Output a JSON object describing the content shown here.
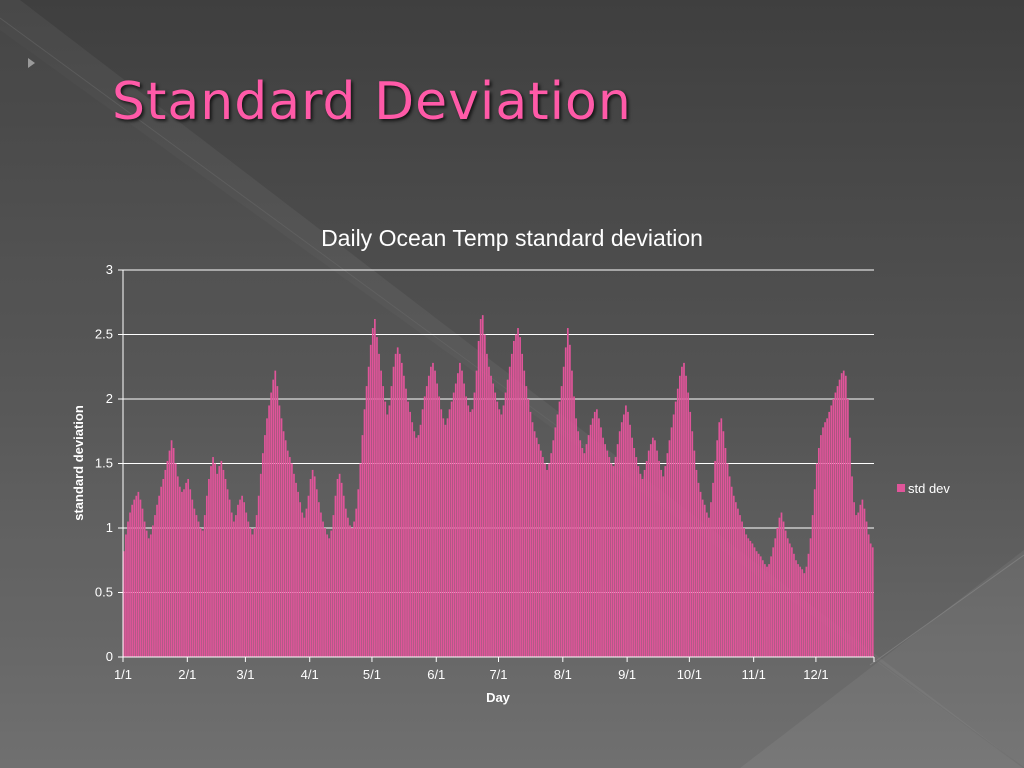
{
  "slide": {
    "title": "Standard Deviation",
    "title_color": "#ff5aa8",
    "marker_icon": "triangle-right-icon"
  },
  "chart_data": {
    "type": "bar",
    "title": "Daily Ocean Temp standard deviation",
    "xlabel": "Day",
    "ylabel": "standard deviation",
    "ylim": [
      0,
      3
    ],
    "yticks": [
      "0",
      "0.5",
      "1",
      "1.5",
      "2",
      "2.5",
      "3"
    ],
    "xticks": [
      {
        "label": "1/1",
        "day": 0
      },
      {
        "label": "2/1",
        "day": 31
      },
      {
        "label": "3/1",
        "day": 59
      },
      {
        "label": "4/1",
        "day": 90
      },
      {
        "label": "5/1",
        "day": 120
      },
      {
        "label": "6/1",
        "day": 151
      },
      {
        "label": "7/1",
        "day": 181
      },
      {
        "label": "8/1",
        "day": 212
      },
      {
        "label": "9/1",
        "day": 243
      },
      {
        "label": "10/1",
        "day": 273
      },
      {
        "label": "11/1",
        "day": 304
      },
      {
        "label": "12/1",
        "day": 334
      }
    ],
    "grid": true,
    "legend_position": "right",
    "series": [
      {
        "name": "std dev",
        "color": "#e0559a",
        "values": [
          0.82,
          0.95,
          1.05,
          1.12,
          1.18,
          1.22,
          1.25,
          1.28,
          1.22,
          1.15,
          1.05,
          0.98,
          0.92,
          0.95,
          1.02,
          1.1,
          1.18,
          1.25,
          1.32,
          1.38,
          1.45,
          1.52,
          1.6,
          1.68,
          1.62,
          1.5,
          1.4,
          1.32,
          1.28,
          1.3,
          1.35,
          1.38,
          1.3,
          1.22,
          1.15,
          1.1,
          1.05,
          1.0,
          0.98,
          1.1,
          1.25,
          1.38,
          1.48,
          1.55,
          1.5,
          1.42,
          1.48,
          1.52,
          1.45,
          1.38,
          1.3,
          1.22,
          1.12,
          1.05,
          1.1,
          1.18,
          1.22,
          1.25,
          1.2,
          1.12,
          1.05,
          1.0,
          0.95,
          1.0,
          1.1,
          1.25,
          1.42,
          1.58,
          1.72,
          1.85,
          1.95,
          2.05,
          2.15,
          2.22,
          2.1,
          1.95,
          1.85,
          1.75,
          1.68,
          1.6,
          1.55,
          1.5,
          1.42,
          1.35,
          1.28,
          1.2,
          1.12,
          1.08,
          1.15,
          1.25,
          1.38,
          1.45,
          1.4,
          1.3,
          1.2,
          1.12,
          1.05,
          1.0,
          0.95,
          0.92,
          0.98,
          1.1,
          1.25,
          1.38,
          1.42,
          1.35,
          1.25,
          1.15,
          1.08,
          1.02,
          1.0,
          1.05,
          1.15,
          1.3,
          1.5,
          1.72,
          1.92,
          2.1,
          2.25,
          2.42,
          2.55,
          2.62,
          2.48,
          2.35,
          2.22,
          2.1,
          1.98,
          1.88,
          1.95,
          2.1,
          2.25,
          2.35,
          2.4,
          2.35,
          2.28,
          2.18,
          2.08,
          1.98,
          1.9,
          1.82,
          1.75,
          1.7,
          1.72,
          1.8,
          1.92,
          2.02,
          2.1,
          2.18,
          2.25,
          2.28,
          2.22,
          2.12,
          2.02,
          1.92,
          1.85,
          1.8,
          1.85,
          1.92,
          1.98,
          2.05,
          2.12,
          2.2,
          2.28,
          2.22,
          2.12,
          2.02,
          1.95,
          1.9,
          1.92,
          2.05,
          2.22,
          2.45,
          2.62,
          2.65,
          2.5,
          2.35,
          2.25,
          2.18,
          2.12,
          2.05,
          1.98,
          1.92,
          1.88,
          1.95,
          2.05,
          2.15,
          2.25,
          2.35,
          2.45,
          2.5,
          2.55,
          2.48,
          2.35,
          2.22,
          2.1,
          2.0,
          1.9,
          1.82,
          1.75,
          1.7,
          1.65,
          1.6,
          1.55,
          1.5,
          1.45,
          1.5,
          1.58,
          1.68,
          1.78,
          1.88,
          1.98,
          2.1,
          2.25,
          2.4,
          2.55,
          2.42,
          2.22,
          2.02,
          1.85,
          1.75,
          1.68,
          1.62,
          1.58,
          1.65,
          1.72,
          1.8,
          1.85,
          1.9,
          1.92,
          1.85,
          1.78,
          1.7,
          1.65,
          1.6,
          1.55,
          1.5,
          1.48,
          1.55,
          1.65,
          1.75,
          1.82,
          1.88,
          1.95,
          1.9,
          1.8,
          1.7,
          1.62,
          1.55,
          1.48,
          1.42,
          1.38,
          1.45,
          1.52,
          1.6,
          1.65,
          1.7,
          1.68,
          1.6,
          1.52,
          1.45,
          1.4,
          1.48,
          1.58,
          1.68,
          1.78,
          1.88,
          1.98,
          2.08,
          2.18,
          2.25,
          2.28,
          2.18,
          2.05,
          1.9,
          1.75,
          1.6,
          1.45,
          1.35,
          1.28,
          1.22,
          1.18,
          1.12,
          1.08,
          1.2,
          1.35,
          1.52,
          1.68,
          1.82,
          1.85,
          1.75,
          1.62,
          1.5,
          1.4,
          1.32,
          1.25,
          1.2,
          1.15,
          1.1,
          1.05,
          1.0,
          0.95,
          0.92,
          0.9,
          0.88,
          0.85,
          0.82,
          0.8,
          0.78,
          0.75,
          0.72,
          0.7,
          0.72,
          0.78,
          0.85,
          0.92,
          1.0,
          1.08,
          1.12,
          1.05,
          0.98,
          0.92,
          0.88,
          0.85,
          0.8,
          0.75,
          0.72,
          0.7,
          0.68,
          0.65,
          0.7,
          0.8,
          0.92,
          1.1,
          1.3,
          1.5,
          1.62,
          1.72,
          1.78,
          1.82,
          1.85,
          1.9,
          1.95,
          2.0,
          2.05,
          2.1,
          2.15,
          2.2,
          2.22,
          2.18,
          2.0,
          1.7,
          1.4,
          1.2,
          1.1,
          1.12,
          1.18,
          1.22,
          1.15,
          1.05,
          0.95,
          0.88,
          0.85
        ]
      }
    ]
  }
}
